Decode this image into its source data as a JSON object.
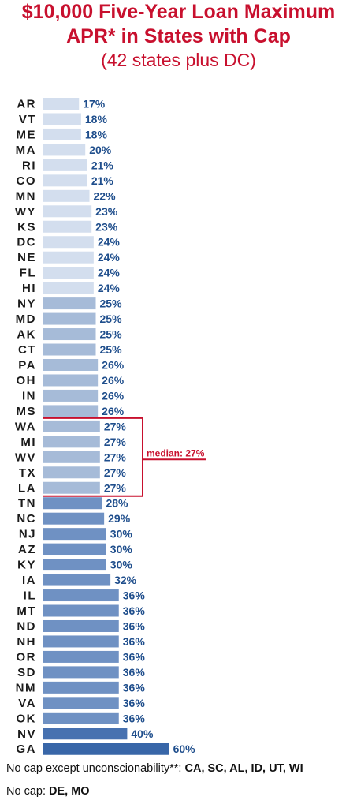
{
  "chart_data": {
    "type": "bar",
    "orientation": "horizontal",
    "title": "$10,000 Five-Year Loan Maximum APR* in States with Cap",
    "title_line1": "$10,000 Five-Year Loan Maximum",
    "title_line2": "APR* in States with Cap",
    "subtitle": "(42 states plus DC)",
    "categories": [
      "AR",
      "VT",
      "ME",
      "MA",
      "RI",
      "CO",
      "MN",
      "WY",
      "KS",
      "DC",
      "NE",
      "FL",
      "HI",
      "NY",
      "MD",
      "AK",
      "CT",
      "PA",
      "OH",
      "IN",
      "MS",
      "WA",
      "MI",
      "WV",
      "TX",
      "LA",
      "TN",
      "NC",
      "NJ",
      "AZ",
      "KY",
      "IA",
      "IL",
      "MT",
      "ND",
      "NH",
      "OR",
      "SD",
      "NM",
      "VA",
      "OK",
      "NV",
      "GA"
    ],
    "values": [
      17,
      18,
      18,
      20,
      21,
      21,
      22,
      23,
      23,
      24,
      24,
      24,
      24,
      25,
      25,
      25,
      25,
      26,
      26,
      26,
      26,
      27,
      27,
      27,
      27,
      27,
      28,
      29,
      30,
      30,
      30,
      32,
      36,
      36,
      36,
      36,
      36,
      36,
      36,
      36,
      36,
      40,
      60
    ],
    "value_suffix": "%",
    "median": {
      "value": 27,
      "label": "median: 27%",
      "first_category": "WA",
      "last_category": "LA"
    },
    "colors": {
      "lt24": "#d3deee",
      "r25_27": "#a6bbd8",
      "r28_36": "#6f91c3",
      "r40": "#4771b0",
      "r60": "#3866a8",
      "value_text": "#1f4e8c",
      "median": "#c8102e"
    },
    "grid": false,
    "legend": "none"
  },
  "footnotes": {
    "line1_prefix": "No cap except unconscionability**: ",
    "line1_states": "CA, SC, AL, ID, UT, WI",
    "line2_prefix": "No cap: ",
    "line2_states": "DE, MO"
  }
}
